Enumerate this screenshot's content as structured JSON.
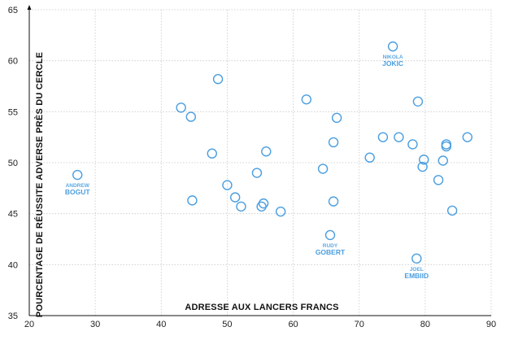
{
  "chart_data": {
    "type": "scatter",
    "title": "",
    "xlabel": "ADRESSE AUX LANCERS FRANCS",
    "ylabel": "POURCENTAGE DE RÉUSSITE ADVERSE PRÈS DU CERCLE",
    "xlim": [
      20,
      90
    ],
    "ylim": [
      35,
      65
    ],
    "xticks": [
      "20",
      "30",
      "40",
      "50",
      "60",
      "70",
      "80",
      "90"
    ],
    "yticks": [
      "35",
      "40",
      "45",
      "50",
      "55",
      "60",
      "65"
    ],
    "grid": true,
    "marker_color": "#4a9ee0",
    "points": [
      {
        "x": 27.3,
        "y": 48.8
      },
      {
        "x": 43.0,
        "y": 55.4
      },
      {
        "x": 44.5,
        "y": 54.5
      },
      {
        "x": 44.7,
        "y": 46.3
      },
      {
        "x": 47.7,
        "y": 50.9
      },
      {
        "x": 48.6,
        "y": 58.2
      },
      {
        "x": 50.0,
        "y": 47.8
      },
      {
        "x": 51.2,
        "y": 46.6
      },
      {
        "x": 52.1,
        "y": 45.7
      },
      {
        "x": 54.5,
        "y": 49.0
      },
      {
        "x": 55.2,
        "y": 45.7
      },
      {
        "x": 55.5,
        "y": 46.0
      },
      {
        "x": 55.9,
        "y": 51.1
      },
      {
        "x": 58.1,
        "y": 45.2
      },
      {
        "x": 62.0,
        "y": 56.2
      },
      {
        "x": 64.5,
        "y": 49.4
      },
      {
        "x": 65.6,
        "y": 42.9
      },
      {
        "x": 66.1,
        "y": 52.0
      },
      {
        "x": 66.1,
        "y": 46.2
      },
      {
        "x": 66.6,
        "y": 54.4
      },
      {
        "x": 71.6,
        "y": 50.5
      },
      {
        "x": 73.6,
        "y": 52.5
      },
      {
        "x": 75.1,
        "y": 61.4
      },
      {
        "x": 76.0,
        "y": 52.5
      },
      {
        "x": 78.1,
        "y": 51.8
      },
      {
        "x": 78.7,
        "y": 40.6
      },
      {
        "x": 78.9,
        "y": 56.0
      },
      {
        "x": 79.6,
        "y": 49.6
      },
      {
        "x": 79.8,
        "y": 50.3
      },
      {
        "x": 82.0,
        "y": 48.3
      },
      {
        "x": 82.7,
        "y": 50.2
      },
      {
        "x": 83.2,
        "y": 51.8
      },
      {
        "x": 83.2,
        "y": 51.6
      },
      {
        "x": 84.1,
        "y": 45.3
      },
      {
        "x": 86.4,
        "y": 52.5
      }
    ],
    "annotations": [
      {
        "first": "ANDREW",
        "last": "BOGUT",
        "x": 27.3,
        "y": 48.8,
        "position": "below"
      },
      {
        "first": "NIKOLA",
        "last": "JOKIC",
        "x": 75.1,
        "y": 61.4,
        "position": "below"
      },
      {
        "first": "RUDY",
        "last": "GOBERT",
        "x": 65.6,
        "y": 42.9,
        "position": "below"
      },
      {
        "first": "JOEL",
        "last": "EMBIID",
        "x": 78.7,
        "y": 40.6,
        "position": "below"
      }
    ]
  }
}
